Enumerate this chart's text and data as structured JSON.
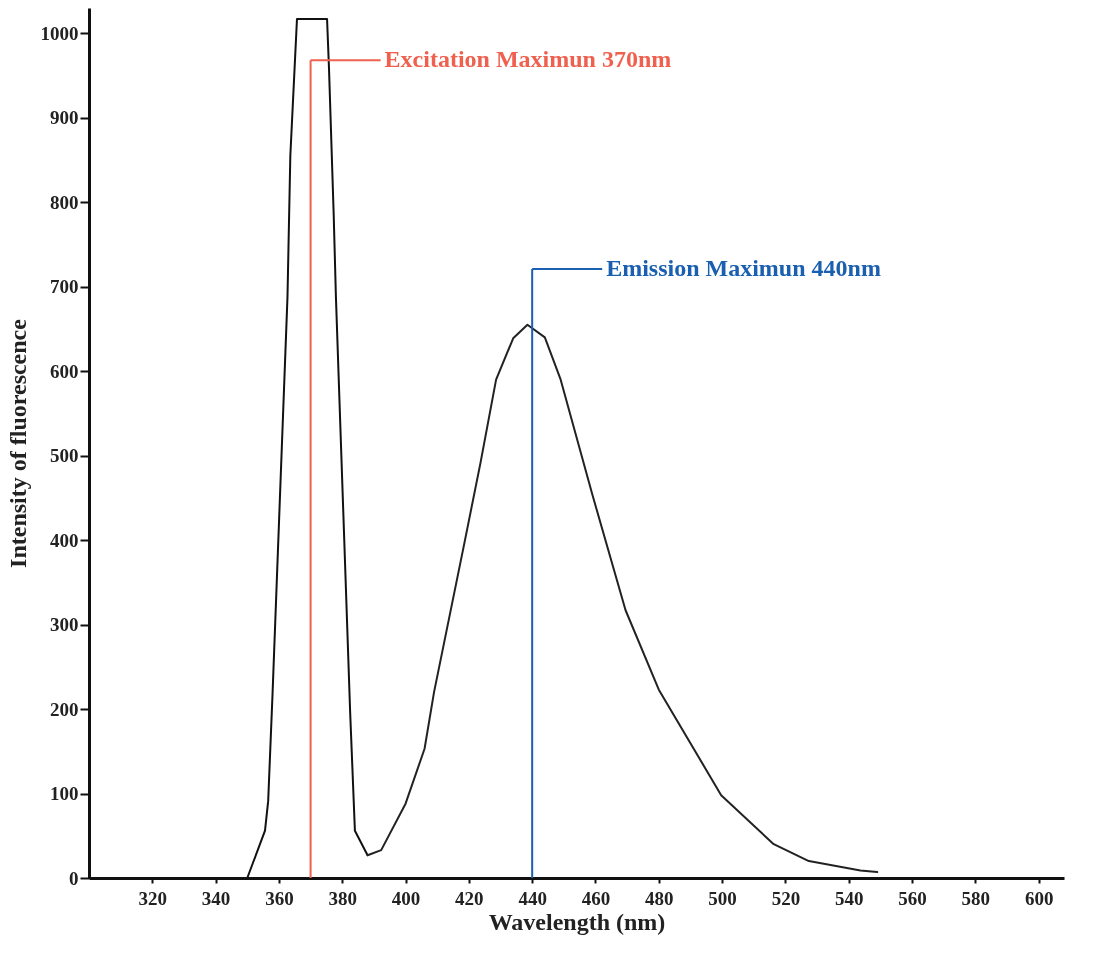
{
  "chart_data": {
    "type": "line",
    "xlabel": "Wavelength (nm)",
    "ylabel": "Intensity of fluorescence",
    "xlim": [
      300,
      608
    ],
    "xticks": [
      320,
      340,
      360,
      380,
      400,
      420,
      440,
      460,
      480,
      500,
      520,
      540,
      560,
      580,
      600
    ],
    "ylim": [
      0,
      1030
    ],
    "yticks": [
      0,
      100,
      200,
      300,
      400,
      500,
      600,
      700,
      800,
      900,
      1000
    ],
    "series": [
      {
        "color": "#111111",
        "x": [
          300,
          350,
          355.6,
          356.6,
          358,
          362.7,
          363.6,
          365.7,
          375.2,
          375.8,
          377.3,
          378,
          382.5,
          384,
          388
        ],
        "values": [
          0,
          0,
          56,
          91,
          220,
          688,
          855,
          1017,
          1017,
          960,
          785,
          688,
          196,
          56,
          27
        ]
      },
      {
        "color": "#222222",
        "x": [
          388,
          392.3,
          400,
          406,
          409,
          418.5,
          423.7,
          428.6,
          434,
          438.5,
          444,
          449,
          459,
          469.5,
          480,
          499.7,
          516.3,
          527.4,
          543.7,
          549
        ],
        "values": [
          27,
          33,
          88,
          153,
          220,
          395,
          492,
          590,
          639,
          655,
          640,
          590,
          454,
          317,
          223,
          98,
          40,
          20,
          9,
          7
        ]
      }
    ],
    "ref_lines": [
      {
        "axis": "x",
        "value": 370,
        "label": "Excitation Maximun 370nm",
        "color": "#f0604f"
      },
      {
        "axis": "x",
        "value": 440,
        "label": "Emission Maximun 440nm",
        "color": "#1a5fb0"
      }
    ]
  }
}
